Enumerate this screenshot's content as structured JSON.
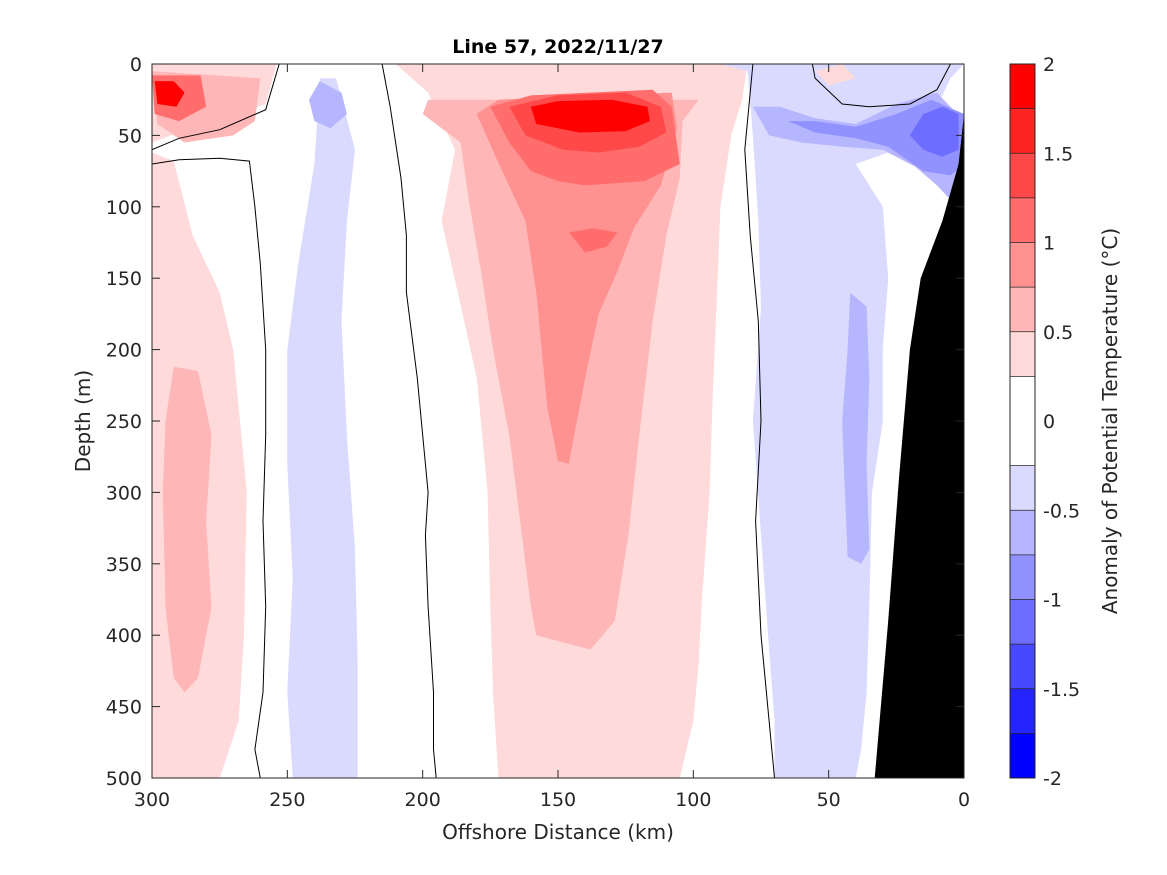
{
  "chart_data": {
    "type": "heatmap",
    "subtype": "filled-contour section",
    "title": "Line 57, 2022/11/27",
    "xlabel": "Offshore Distance (km)",
    "ylabel": "Depth (m)",
    "xlim": [
      300,
      0
    ],
    "x_reversed": true,
    "ylim": [
      0,
      500
    ],
    "y_reversed": true,
    "x_ticks": [
      300,
      250,
      200,
      150,
      100,
      50,
      0
    ],
    "x_tick_labels": [
      "300",
      "250",
      "200",
      "150",
      "100",
      "50",
      "0"
    ],
    "y_ticks": [
      0,
      50,
      100,
      150,
      200,
      250,
      300,
      350,
      400,
      450,
      500
    ],
    "y_tick_labels": [
      "0",
      "50",
      "100",
      "150",
      "200",
      "250",
      "300",
      "350",
      "400",
      "450",
      "500"
    ],
    "colorbar": {
      "label": "Anomaly of Potential Temperature (°C)",
      "range": [
        -2,
        2
      ],
      "levels": [
        -2,
        -1.75,
        -1.5,
        -1.25,
        -1,
        -0.75,
        -0.5,
        -0.25,
        0.25,
        0.5,
        0.75,
        1,
        1.25,
        1.5,
        1.75,
        2
      ],
      "tick_values": [
        2,
        1.5,
        1,
        0.5,
        0,
        -0.5,
        -1,
        -1.5,
        -2
      ],
      "tick_labels": [
        "2",
        "1.5",
        "1",
        "0.5",
        "0",
        "-0.5",
        "-1",
        "-1.5",
        "-2"
      ],
      "band_colors": [
        "#0000ff",
        "#2424ff",
        "#4848ff",
        "#6d6dff",
        "#9191ff",
        "#b6b6ff",
        "#dadaff",
        "#ffffff",
        "#ffdada",
        "#ffb6b6",
        "#ff9191",
        "#ff6d6d",
        "#ff4848",
        "#ff2424",
        "#ff0000"
      ]
    },
    "zero_contour_color": "#000000",
    "bathymetry_color": "#000000",
    "features": [
      {
        "name": "surface warm core",
        "x_center_km": 135,
        "depth_range_m": [
          0,
          280
        ],
        "peak_anomaly": 1.75
      },
      {
        "name": "offshore warm patch",
        "x_center_km": 280,
        "depth_range_m": [
          60,
          440
        ],
        "peak_anomaly": 0.75
      },
      {
        "name": "nearshore surface cold core",
        "x_center_km": 12,
        "depth_range_m": [
          20,
          90
        ],
        "peak_anomaly": -1.25
      },
      {
        "name": "nearshore cold band",
        "x_center_km": 40,
        "depth_range_m": [
          100,
          500
        ],
        "peak_anomaly": -0.75
      },
      {
        "name": "offshore cold band",
        "x_center_km": 237,
        "depth_range_m": [
          0,
          500
        ],
        "peak_anomaly": -0.5
      }
    ],
    "grid": false
  }
}
